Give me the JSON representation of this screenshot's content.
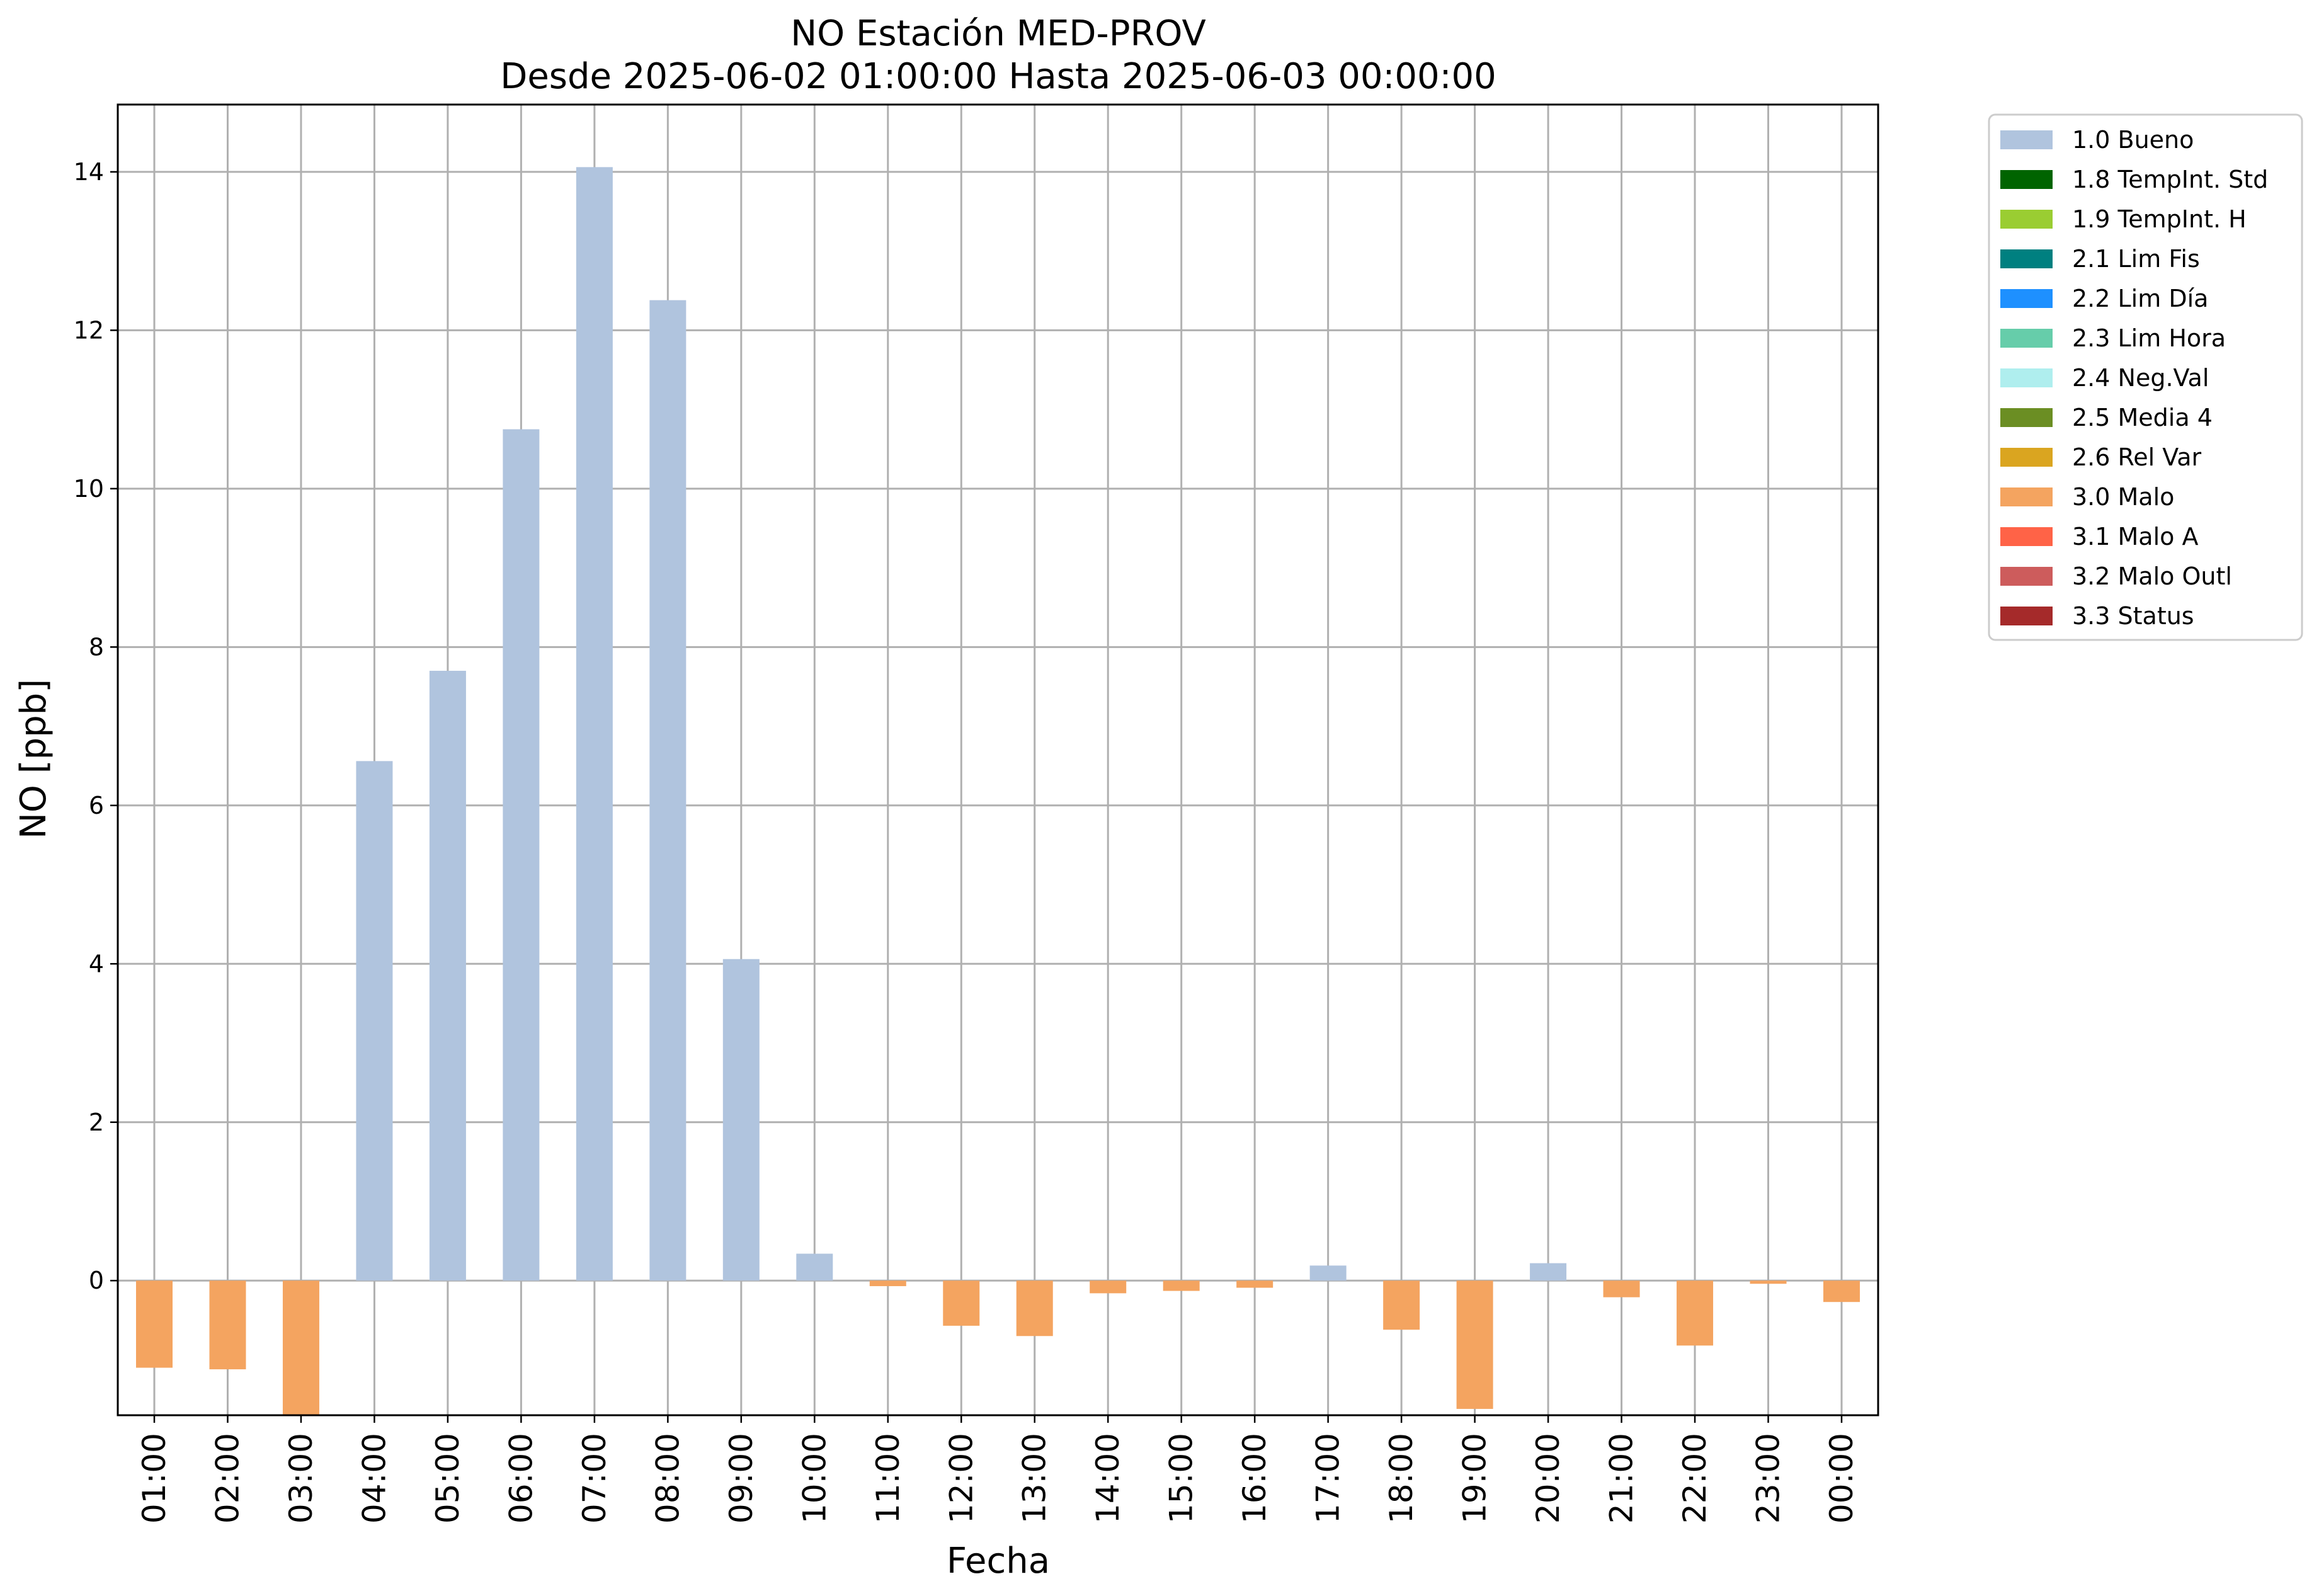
{
  "chart_data": {
    "type": "bar",
    "title": "NO Estación MED-PROV",
    "subtitle": "Desde 2025-06-02 01:00:00 Hasta 2025-06-03 00:00:00",
    "xlabel": "Fecha",
    "ylabel": "NO [ppb]",
    "ylim": [
      -1.7,
      14.85
    ],
    "yticks": [
      0,
      2,
      4,
      6,
      8,
      10,
      12,
      14
    ],
    "grid": true,
    "legend_position": "outside-right",
    "categories": [
      "01:00",
      "02:00",
      "03:00",
      "04:00",
      "05:00",
      "06:00",
      "07:00",
      "08:00",
      "09:00",
      "10:00",
      "11:00",
      "12:00",
      "13:00",
      "14:00",
      "15:00",
      "16:00",
      "17:00",
      "18:00",
      "19:00",
      "20:00",
      "21:00",
      "22:00",
      "23:00",
      "00:00"
    ],
    "values": [
      -1.1,
      -1.12,
      -1.7,
      6.56,
      7.7,
      10.75,
      14.06,
      12.38,
      4.06,
      0.34,
      -0.07,
      -0.57,
      -0.7,
      -0.16,
      -0.13,
      -0.09,
      0.19,
      -0.62,
      -1.62,
      0.22,
      -0.21,
      -0.82,
      -0.04,
      -0.27
    ],
    "flags": [
      "3.0 Malo",
      "3.0 Malo",
      "3.0 Malo",
      "1.0 Bueno",
      "1.0 Bueno",
      "1.0 Bueno",
      "1.0 Bueno",
      "1.0 Bueno",
      "1.0 Bueno",
      "1.0 Bueno",
      "3.0 Malo",
      "3.0 Malo",
      "3.0 Malo",
      "3.0 Malo",
      "3.0 Malo",
      "3.0 Malo",
      "1.0 Bueno",
      "3.0 Malo",
      "3.0 Malo",
      "1.0 Bueno",
      "3.0 Malo",
      "3.0 Malo",
      "3.0 Malo",
      "3.0 Malo"
    ],
    "legend": [
      {
        "label": "1.0 Bueno",
        "color": "#b0c4de"
      },
      {
        "label": "1.8 TempInt. Std",
        "color": "#006400"
      },
      {
        "label": "1.9 TempInt. H",
        "color": "#9acd32"
      },
      {
        "label": "2.1 Lim Fis",
        "color": "#008080"
      },
      {
        "label": "2.2 Lim Día",
        "color": "#1e90ff"
      },
      {
        "label": "2.3 Lim Hora",
        "color": "#66cdaa"
      },
      {
        "label": "2.4 Neg.Val",
        "color": "#afeeee"
      },
      {
        "label": "2.5 Media 4",
        "color": "#6b8e23"
      },
      {
        "label": "2.6 Rel Var",
        "color": "#daa520"
      },
      {
        "label": "3.0 Malo",
        "color": "#f4a460"
      },
      {
        "label": "3.1 Malo A",
        "color": "#ff6347"
      },
      {
        "label": "3.2 Malo Outl",
        "color": "#cd5c5c"
      },
      {
        "label": "3.3 Status",
        "color": "#a52a2a"
      }
    ]
  }
}
